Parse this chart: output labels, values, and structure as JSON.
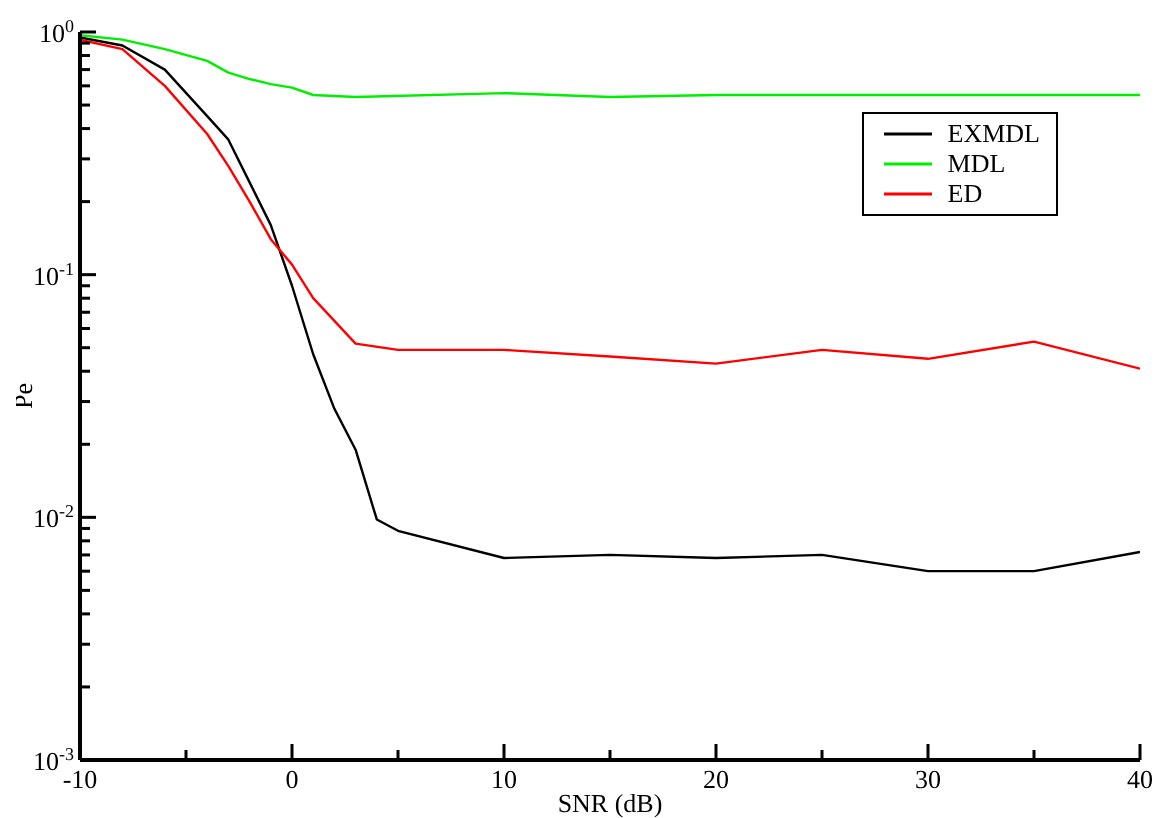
{
  "chart_data": {
    "type": "line",
    "xlabel": "SNR (dB)",
    "ylabel": "Pe",
    "log": "y",
    "grid": false,
    "legend": "top right",
    "marker": "none",
    "line_style": "solid",
    "xlim": [
      -10,
      40
    ],
    "xticks": [
      -10,
      {
        "value": -5,
        "label": null
      },
      0,
      {
        "value": 5,
        "label": null
      },
      10,
      {
        "value": 15,
        "label": null
      },
      20,
      {
        "value": 25,
        "label": null
      },
      30,
      {
        "value": 35,
        "label": null
      },
      40
    ],
    "ylim": [
      0.001,
      1
    ],
    "yticks": [
      {
        "value": 0.001,
        "label": "10$^{-3}$"
      },
      {
        "value": 0.002,
        "label": null
      },
      {
        "value": 0.003,
        "label": null
      },
      {
        "value": 0.004,
        "label": null
      },
      {
        "value": 0.005,
        "label": null
      },
      {
        "value": 0.006,
        "label": null
      },
      {
        "value": 0.007,
        "label": null
      },
      {
        "value": 0.008,
        "label": null
      },
      {
        "value": 0.009,
        "label": null
      },
      {
        "value": 0.01,
        "label": "10$^{-2}$"
      },
      {
        "value": 0.02,
        "label": null
      },
      {
        "value": 0.03,
        "label": null
      },
      {
        "value": 0.04,
        "label": null
      },
      {
        "value": 0.05,
        "label": null
      },
      {
        "value": 0.06,
        "label": null
      },
      {
        "value": 0.07,
        "label": null
      },
      {
        "value": 0.08,
        "label": null
      },
      {
        "value": 0.09,
        "label": null
      },
      {
        "value": 0.1,
        "label": "10$^{-1}$"
      },
      {
        "value": 0.2,
        "label": null
      },
      {
        "value": 0.3,
        "label": null
      },
      {
        "value": 0.4,
        "label": null
      },
      {
        "value": 0.5,
        "label": null
      },
      {
        "value": 0.6,
        "label": null
      },
      {
        "value": 0.7,
        "label": null
      },
      {
        "value": 0.8,
        "label": null
      },
      {
        "value": 0.9,
        "label": null
      },
      {
        "value": 1,
        "label": "10$^{0}$"
      }
    ],
    "series": [
      {
        "name": "EXMDL",
        "color": "#000000",
        "x": [
          -10,
          -8,
          -6,
          -4,
          -3,
          -2,
          -1,
          0,
          1,
          2,
          3,
          4,
          5,
          10,
          15,
          20,
          25,
          30,
          35,
          40
        ],
        "values": [
          0.95,
          0.88,
          0.7,
          0.45,
          0.36,
          0.24,
          0.16,
          0.09,
          0.047,
          0.028,
          0.019,
          0.0098,
          0.0088,
          0.0068,
          0.007,
          0.0068,
          0.007,
          0.006,
          0.006,
          0.0072
        ]
      },
      {
        "name": "MDL",
        "color": "#00ee00",
        "x": [
          -10,
          -8,
          -6,
          -4,
          -3,
          -2,
          -1,
          0,
          1,
          3,
          10,
          15,
          20,
          30,
          40
        ],
        "values": [
          0.97,
          0.93,
          0.85,
          0.76,
          0.68,
          0.64,
          0.61,
          0.59,
          0.55,
          0.54,
          0.56,
          0.54,
          0.55,
          0.55,
          0.55
        ]
      },
      {
        "name": "ED",
        "color": "#ff0000",
        "x": [
          -10,
          -8,
          -6,
          -4,
          -3,
          -2,
          -1,
          0,
          1,
          3,
          5,
          10,
          15,
          20,
          25,
          30,
          35,
          40
        ],
        "values": [
          0.93,
          0.85,
          0.6,
          0.38,
          0.28,
          0.2,
          0.14,
          0.11,
          0.08,
          0.052,
          0.049,
          0.049,
          0.046,
          0.043,
          0.049,
          0.045,
          0.053,
          0.041
        ]
      }
    ]
  }
}
